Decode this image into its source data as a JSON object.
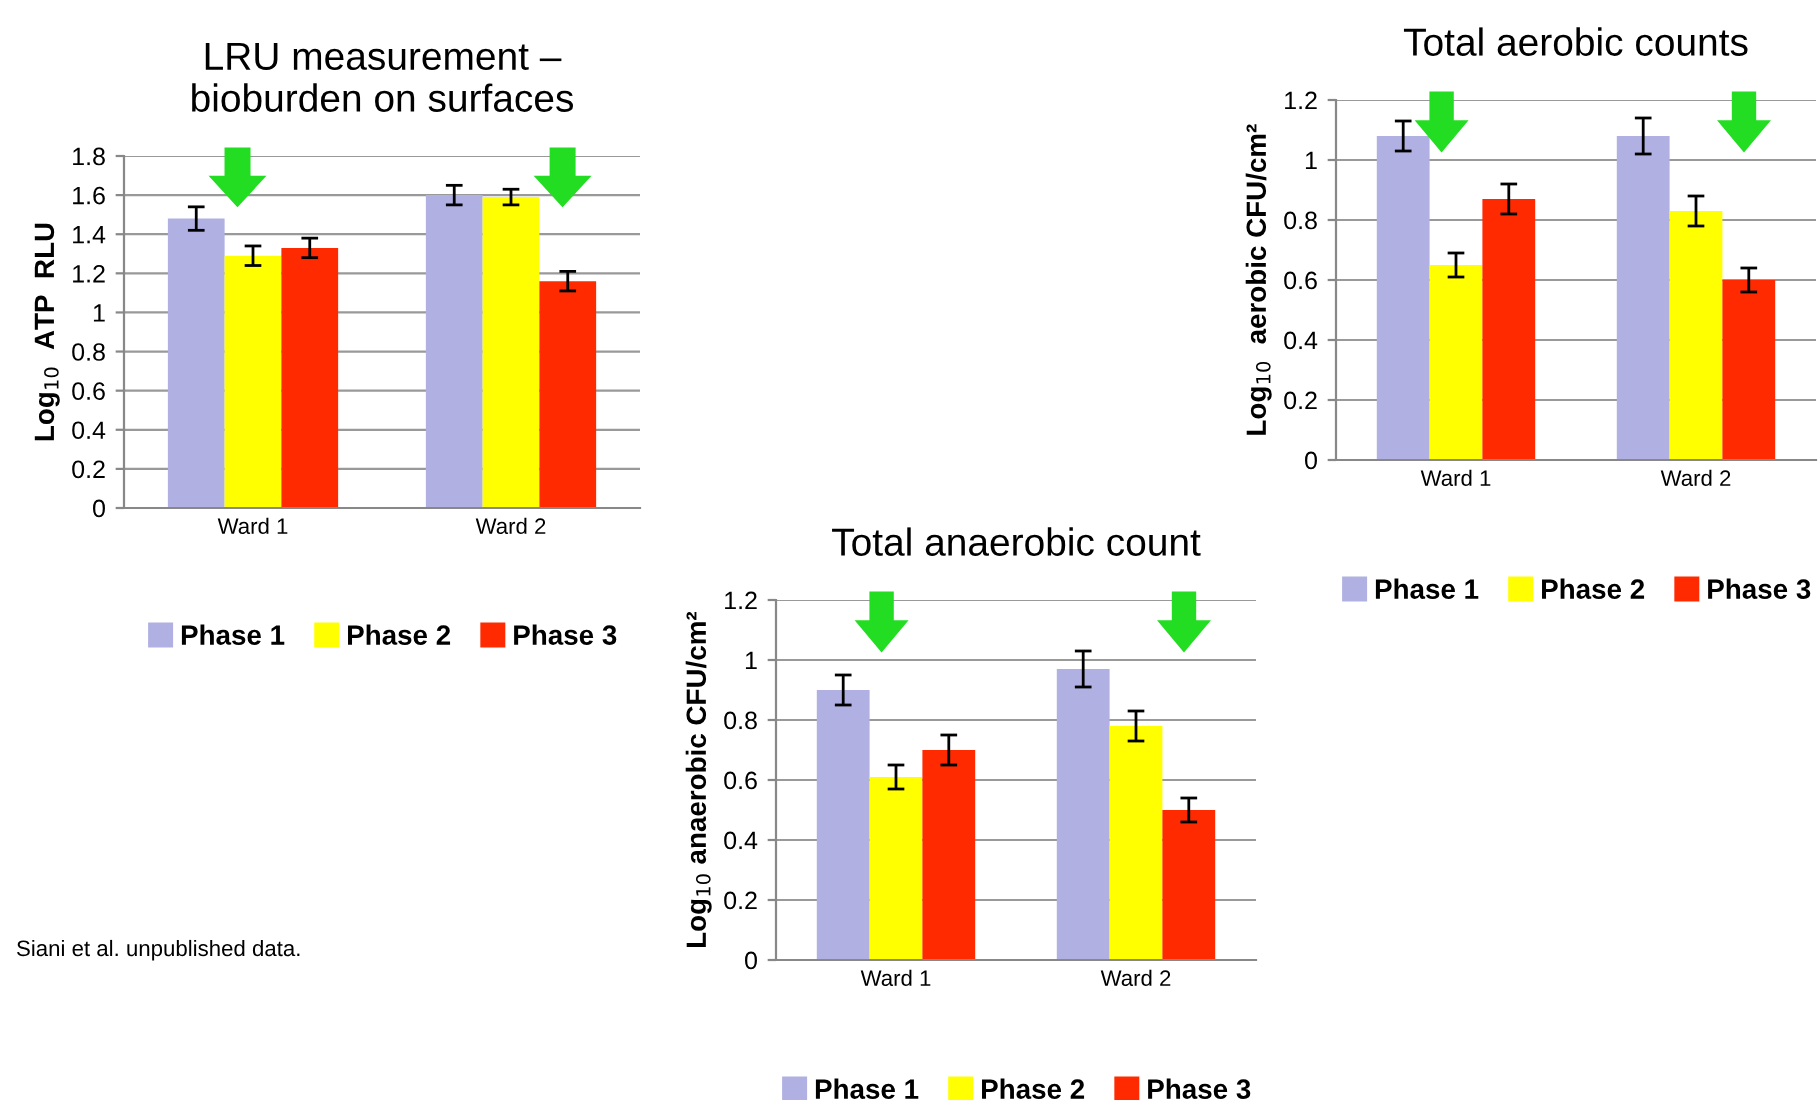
{
  "chart_data": [
    {
      "type": "bar",
      "title": "LRU measurement –\nbioburden on surfaces",
      "ylabel": "Log$_{10}$  ATP  RLU",
      "categories": [
        "Ward 1",
        "Ward 2"
      ],
      "series": [
        {
          "name": "Phase 1",
          "color": "#b0b0e2",
          "values": [
            1.48,
            1.6
          ],
          "errors": [
            0.06,
            0.05
          ]
        },
        {
          "name": "Phase 2",
          "color": "#ffff00",
          "values": [
            1.29,
            1.59
          ],
          "errors": [
            0.05,
            0.04
          ]
        },
        {
          "name": "Phase 3",
          "color": "#ff2a00",
          "values": [
            1.33,
            1.16
          ],
          "errors": [
            0.05,
            0.05
          ]
        }
      ],
      "ylim": [
        0,
        1.8
      ],
      "yticks": [
        0,
        0.2,
        0.4,
        0.6,
        0.8,
        1,
        1.2,
        1.4,
        1.6,
        1.8
      ],
      "grid": "y",
      "legend": "bottom",
      "annotations": [
        "Siani et al. unpublished data."
      ]
    },
    {
      "type": "bar",
      "title": "Total aerobic counts",
      "ylabel": "Log$_{10}$  aerobic CFU/cm²",
      "categories": [
        "Ward 1",
        "Ward 2"
      ],
      "series": [
        {
          "name": "Phase 1",
          "color": "#b0b0e2",
          "values": [
            1.08,
            1.08
          ],
          "errors": [
            0.05,
            0.06
          ]
        },
        {
          "name": "Phase 2",
          "color": "#ffff00",
          "values": [
            0.65,
            0.83
          ],
          "errors": [
            0.04,
            0.05
          ]
        },
        {
          "name": "Phase 3",
          "color": "#ff2a00",
          "values": [
            0.87,
            0.6
          ],
          "errors": [
            0.05,
            0.04
          ]
        }
      ],
      "ylim": [
        0,
        1.2
      ],
      "yticks": [
        0,
        0.2,
        0.4,
        0.6,
        0.8,
        1,
        1.2
      ],
      "grid": "y",
      "legend": "bottom"
    },
    {
      "type": "bar",
      "title": "Total anaerobic count",
      "ylabel": "Log$_{10}$ anaerobic CFU/cm²",
      "categories": [
        "Ward 1",
        "Ward 2"
      ],
      "series": [
        {
          "name": "Phase 1",
          "color": "#b0b0e2",
          "values": [
            0.9,
            0.97
          ],
          "errors": [
            0.05,
            0.06
          ]
        },
        {
          "name": "Phase 2",
          "color": "#ffff00",
          "values": [
            0.61,
            0.78
          ],
          "errors": [
            0.04,
            0.05
          ]
        },
        {
          "name": "Phase 3",
          "color": "#ff2a00",
          "values": [
            0.7,
            0.5
          ],
          "errors": [
            0.05,
            0.04
          ]
        }
      ],
      "ylim": [
        0,
        1.2
      ],
      "yticks": [
        0,
        0.2,
        0.4,
        0.6,
        0.8,
        1,
        1.2
      ],
      "grid": "y",
      "legend": "bottom"
    }
  ]
}
